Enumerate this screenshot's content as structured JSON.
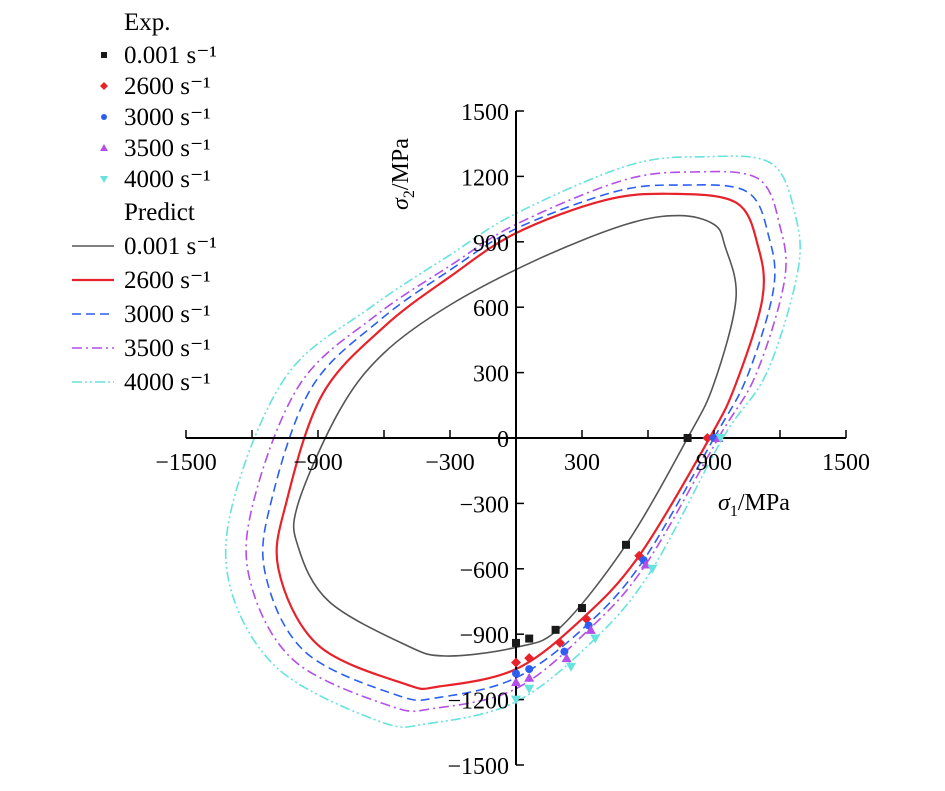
{
  "chart_data": {
    "type": "scatter",
    "title": "",
    "xlabel": {
      "symbol": "σ",
      "sub": "1",
      "unit": "/MPa"
    },
    "ylabel": {
      "symbol": "σ",
      "sub": "2",
      "unit": "/MPa"
    },
    "xlim": [
      -1500,
      1500
    ],
    "ylim": [
      -1500,
      1500
    ],
    "xticks": [
      -1500,
      -900,
      -300,
      300,
      900,
      1500
    ],
    "yticks": [
      -1500,
      -1200,
      -900,
      -600,
      -300,
      0,
      300,
      600,
      900,
      1200,
      1500
    ],
    "x_tick_labels": [
      "−1500",
      "−900",
      "−300",
      "300",
      "900",
      "1500"
    ],
    "y_tick_labels": [
      "−1500",
      "−1200",
      "−900",
      "−600",
      "−300",
      "0",
      "300",
      "600",
      "900",
      "1200",
      "1500"
    ],
    "grid": false,
    "legend": {
      "placement": "top-left",
      "exp_header": "Exp.",
      "predict_header": "Predict",
      "exp_entries": [
        {
          "label": "0.001 s⁻¹",
          "color": "#1a1a1a",
          "marker": "square"
        },
        {
          "label": "2600 s⁻¹",
          "color": "#e8222a",
          "marker": "diamond"
        },
        {
          "label": "3000 s⁻¹",
          "color": "#2b5ff2",
          "marker": "circle"
        },
        {
          "label": "3500 s⁻¹",
          "color": "#b34ee8",
          "marker": "triangle-up"
        },
        {
          "label": "4000 s⁻¹",
          "color": "#66e3dc",
          "marker": "triangle-down"
        }
      ],
      "predict_entries": [
        {
          "label": "0.001 s⁻¹",
          "color": "#555555",
          "dash": "solid"
        },
        {
          "label": "2600 s⁻¹",
          "color": "#e8222a",
          "dash": "solid"
        },
        {
          "label": "3000 s⁻¹",
          "color": "#2b5ff2",
          "dash": "dashed"
        },
        {
          "label": "3500 s⁻¹",
          "color": "#b34ee8",
          "dash": "dashdot"
        },
        {
          "label": "4000 s⁻¹",
          "color": "#66e3dc",
          "dash": "dashdotdot"
        }
      ]
    },
    "experimental_series": [
      {
        "name": "0.001 s⁻¹",
        "color": "#1a1a1a",
        "marker": "square",
        "points": [
          [
            780,
            0
          ],
          [
            500,
            -490
          ],
          [
            300,
            -780
          ],
          [
            180,
            -880
          ],
          [
            60,
            -920
          ],
          [
            0,
            -940
          ]
        ]
      },
      {
        "name": "2600 s⁻¹",
        "color": "#e8222a",
        "marker": "diamond",
        "points": [
          [
            870,
            0
          ],
          [
            560,
            -540
          ],
          [
            320,
            -830
          ],
          [
            200,
            -940
          ],
          [
            60,
            -1010
          ],
          [
            0,
            -1030
          ]
        ]
      },
      {
        "name": "3000 s⁻¹",
        "color": "#2b5ff2",
        "marker": "circle",
        "points": [
          [
            900,
            0
          ],
          [
            580,
            -560
          ],
          [
            330,
            -860
          ],
          [
            220,
            -980
          ],
          [
            60,
            -1060
          ],
          [
            0,
            -1080
          ]
        ]
      },
      {
        "name": "3500 s⁻¹",
        "color": "#b34ee8",
        "marker": "triangle-up",
        "points": [
          [
            920,
            0
          ],
          [
            590,
            -580
          ],
          [
            340,
            -880
          ],
          [
            230,
            -1010
          ],
          [
            60,
            -1100
          ],
          [
            0,
            -1120
          ]
        ]
      },
      {
        "name": "4000 s⁻¹",
        "color": "#66e3dc",
        "marker": "triangle-down",
        "points": [
          [
            930,
            0
          ],
          [
            620,
            -600
          ],
          [
            360,
            -920
          ],
          [
            250,
            -1050
          ],
          [
            60,
            -1150
          ],
          [
            0,
            -1200
          ]
        ]
      }
    ],
    "predicted_curves": [
      {
        "name": "0.001 s⁻¹",
        "color": "#555555",
        "dash": "solid",
        "points": [
          [
            780,
            0
          ],
          [
            900,
            250
          ],
          [
            1000,
            640
          ],
          [
            950,
            880
          ],
          [
            900,
            980
          ],
          [
            740,
            1020
          ],
          [
            500,
            980
          ],
          [
            100,
            820
          ],
          [
            -300,
            610
          ],
          [
            -600,
            390
          ],
          [
            -800,
            130
          ],
          [
            -990,
            -300
          ],
          [
            -990,
            -500
          ],
          [
            -850,
            -750
          ],
          [
            -500,
            -950
          ],
          [
            -320,
            -1000
          ],
          [
            0,
            -960
          ],
          [
            200,
            -870
          ],
          [
            500,
            -490
          ],
          [
            780,
            0
          ]
        ]
      },
      {
        "name": "2600 s⁻¹",
        "color": "#e8222a",
        "dash": "solid",
        "points": [
          [
            880,
            0
          ],
          [
            1000,
            250
          ],
          [
            1120,
            640
          ],
          [
            1100,
            880
          ],
          [
            1000,
            1080
          ],
          [
            700,
            1120
          ],
          [
            400,
            1090
          ],
          [
            0,
            940
          ],
          [
            -300,
            740
          ],
          [
            -600,
            510
          ],
          [
            -880,
            200
          ],
          [
            -1040,
            -280
          ],
          [
            -1080,
            -600
          ],
          [
            -900,
            -950
          ],
          [
            -500,
            -1130
          ],
          [
            -350,
            -1140
          ],
          [
            0,
            -1060
          ],
          [
            300,
            -830
          ],
          [
            560,
            -540
          ],
          [
            880,
            0
          ]
        ]
      },
      {
        "name": "3000 s⁻¹",
        "color": "#2b5ff2",
        "dash": "dashed",
        "points": [
          [
            900,
            0
          ],
          [
            1050,
            280
          ],
          [
            1170,
            680
          ],
          [
            1150,
            920
          ],
          [
            1050,
            1130
          ],
          [
            750,
            1160
          ],
          [
            450,
            1130
          ],
          [
            0,
            960
          ],
          [
            -300,
            770
          ],
          [
            -620,
            540
          ],
          [
            -930,
            230
          ],
          [
            -1110,
            -280
          ],
          [
            -1140,
            -620
          ],
          [
            -960,
            -980
          ],
          [
            -540,
            -1180
          ],
          [
            -350,
            -1190
          ],
          [
            0,
            -1100
          ],
          [
            320,
            -860
          ],
          [
            580,
            -560
          ],
          [
            900,
            0
          ]
        ]
      },
      {
        "name": "3500 s⁻¹",
        "color": "#b34ee8",
        "dash": "dashdot",
        "points": [
          [
            920,
            0
          ],
          [
            1090,
            290
          ],
          [
            1220,
            720
          ],
          [
            1200,
            970
          ],
          [
            1100,
            1190
          ],
          [
            800,
            1220
          ],
          [
            480,
            1180
          ],
          [
            0,
            980
          ],
          [
            -300,
            790
          ],
          [
            -640,
            560
          ],
          [
            -980,
            250
          ],
          [
            -1190,
            -280
          ],
          [
            -1210,
            -650
          ],
          [
            -1010,
            -1020
          ],
          [
            -570,
            -1230
          ],
          [
            -370,
            -1240
          ],
          [
            0,
            -1150
          ],
          [
            330,
            -880
          ],
          [
            590,
            -580
          ],
          [
            920,
            0
          ]
        ]
      },
      {
        "name": "4000 s⁻¹",
        "color": "#66e3dc",
        "dash": "dashdotdot",
        "points": [
          [
            940,
            0
          ],
          [
            1140,
            300
          ],
          [
            1280,
            760
          ],
          [
            1270,
            1020
          ],
          [
            1160,
            1260
          ],
          [
            850,
            1290
          ],
          [
            510,
            1250
          ],
          [
            0,
            1030
          ],
          [
            -300,
            840
          ],
          [
            -660,
            600
          ],
          [
            -1040,
            290
          ],
          [
            -1280,
            -270
          ],
          [
            -1300,
            -680
          ],
          [
            -1080,
            -1060
          ],
          [
            -620,
            -1300
          ],
          [
            -400,
            -1310
          ],
          [
            0,
            -1210
          ],
          [
            360,
            -920
          ],
          [
            620,
            -600
          ],
          [
            940,
            0
          ]
        ]
      }
    ]
  }
}
